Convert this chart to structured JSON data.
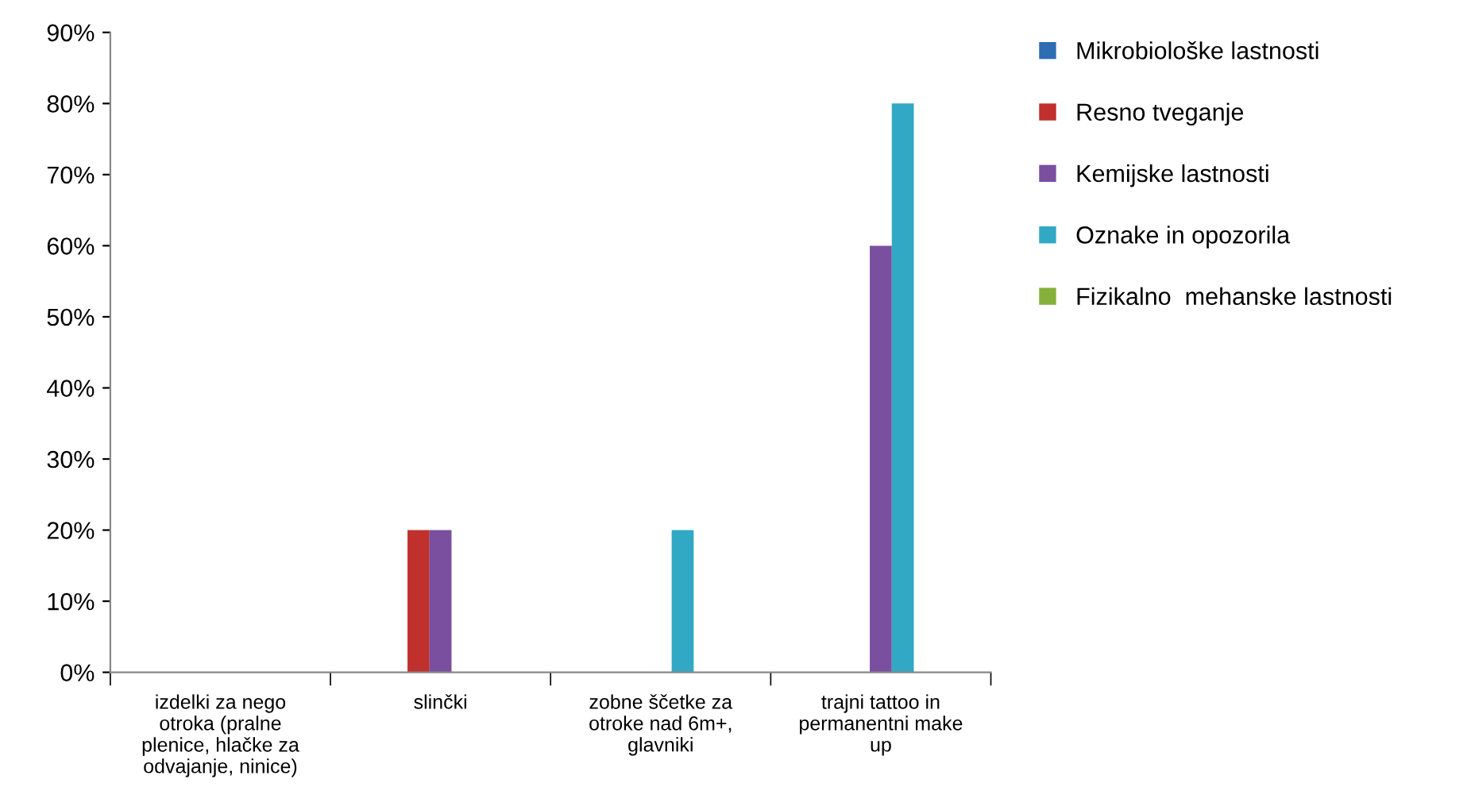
{
  "chart_data": {
    "type": "bar",
    "categories": [
      "izdelki za nego otroka (pralne plenice, hlačke za odvajanje, ninice)",
      "slinčki",
      "zobne ščetke za otroke nad 6m+, glavniki",
      "trajni tattoo in permanentni make up"
    ],
    "series": [
      {
        "name": "Mikrobiološke lastnosti",
        "color": "#2e6db4",
        "values": [
          0,
          0,
          0,
          0
        ]
      },
      {
        "name": "Resno tveganje",
        "color": "#c0302c",
        "values": [
          0,
          20,
          0,
          0
        ]
      },
      {
        "name": "Kemijske lastnosti",
        "color": "#7a4fa0",
        "values": [
          0,
          20,
          0,
          60
        ]
      },
      {
        "name": "Oznake in opozorila",
        "color": "#31a9c4",
        "values": [
          0,
          0,
          20,
          80
        ]
      },
      {
        "name": "Fizikalno  mehanske lastnosti",
        "color": "#86b03c",
        "values": [
          0,
          0,
          0,
          0
        ]
      }
    ],
    "ylim": [
      0,
      90
    ],
    "yticks": [
      {
        "value": 0,
        "label": "0%"
      },
      {
        "value": 10,
        "label": "10%"
      },
      {
        "value": 20,
        "label": "20%"
      },
      {
        "value": 30,
        "label": "30%"
      },
      {
        "value": 40,
        "label": "40%"
      },
      {
        "value": 50,
        "label": "50%"
      },
      {
        "value": 60,
        "label": "60%"
      },
      {
        "value": 70,
        "label": "70%"
      },
      {
        "value": 80,
        "label": "80%"
      },
      {
        "value": 90,
        "label": "90%"
      }
    ],
    "grid": false,
    "legend": "right"
  }
}
